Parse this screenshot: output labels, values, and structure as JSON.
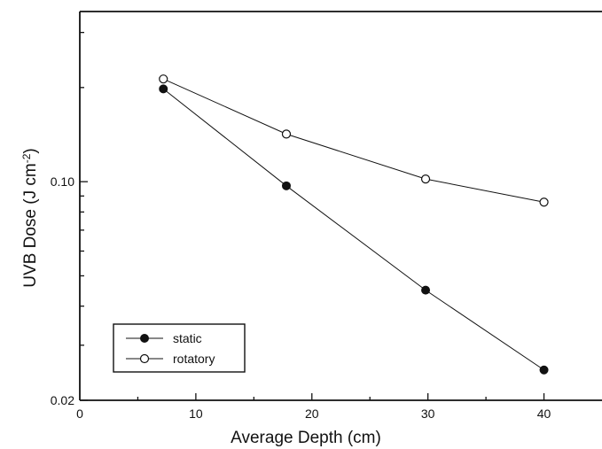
{
  "chart_data": {
    "type": "line",
    "xlabel": "Average Depth (cm)",
    "ylabel": "UVB Dose (J cm-2)",
    "ylabel_parts": {
      "main": "UVB Dose (J cm",
      "superscript": "-2",
      "close": ")"
    },
    "x_scale": "linear",
    "y_scale": "log",
    "xlim": [
      0,
      45
    ],
    "ylim": [
      0.02,
      0.35
    ],
    "x_ticks": [
      0,
      10,
      20,
      30,
      40
    ],
    "x_tick_labels": [
      "0",
      "10",
      "20",
      "30",
      "40"
    ],
    "y_ticks": [
      0.02,
      0.1
    ],
    "y_tick_labels": [
      "0.02",
      "0.10"
    ],
    "grid": false,
    "legend_position": "bottom-left",
    "series": [
      {
        "name": "static",
        "marker": "filled-circle",
        "color": "#111111",
        "x": [
          7.2,
          17.8,
          29.8,
          40.0
        ],
        "values": [
          0.198,
          0.097,
          0.045,
          0.025
        ]
      },
      {
        "name": "rotatory",
        "marker": "open-circle",
        "color": "#111111",
        "x": [
          7.2,
          17.8,
          29.8,
          40.0
        ],
        "values": [
          0.213,
          0.142,
          0.102,
          0.086
        ]
      }
    ]
  }
}
